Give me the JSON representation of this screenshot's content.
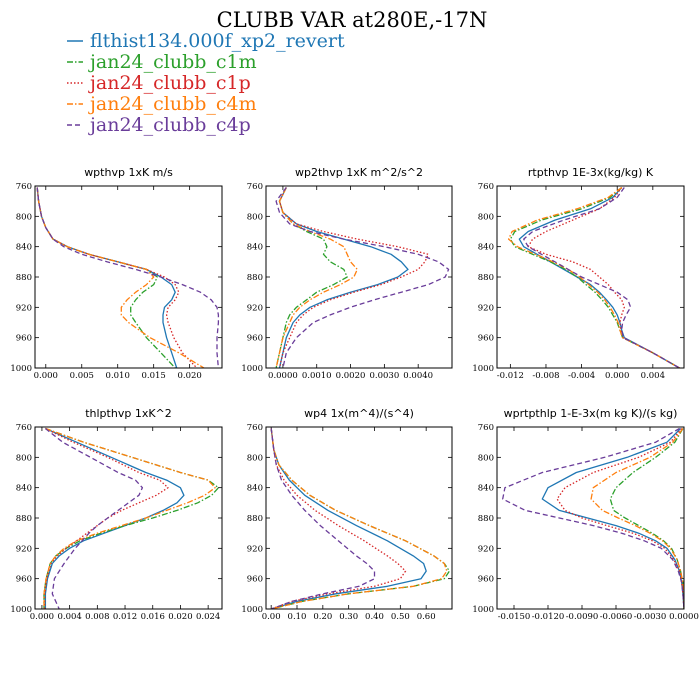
{
  "figure": {
    "title": "CLUBB VAR at280E,-17N"
  },
  "legend": [
    {
      "name": "flthist134.000f_xp2_revert",
      "color": "#1f77b4",
      "dash": "solid"
    },
    {
      "name": "jan24_clubb_c1m",
      "color": "#2ca02c",
      "dash": "dashdot"
    },
    {
      "name": "jan24_clubb_c1p",
      "color": "#d62728",
      "dash": "dot"
    },
    {
      "name": "jan24_clubb_c4m",
      "color": "#ff7f0e",
      "dash": "dashdot"
    },
    {
      "name": "jan24_clubb_c4p",
      "color": "#6a3d9a",
      "dash": "dash"
    }
  ],
  "chart_data": [
    {
      "type": "line",
      "title": "wpthvp  1xK m/s",
      "xlim": [
        -0.0015,
        0.0245
      ],
      "ylim": [
        760,
        1000
      ],
      "y_inverted": true,
      "xticks": [
        0.0,
        0.005,
        0.01,
        0.015,
        0.02
      ],
      "xtick_labels": [
        "0.000",
        "0.005",
        "0.010",
        "0.015",
        "0.020"
      ],
      "yticks": [
        760,
        800,
        840,
        880,
        920,
        960,
        1000
      ],
      "ytick_labels": [
        "760",
        "800",
        "840",
        "880",
        "920",
        "960",
        "1000"
      ],
      "y": [
        762,
        780,
        800,
        815,
        830,
        840,
        850,
        860,
        870,
        880,
        890,
        900,
        910,
        920,
        930,
        940,
        960,
        980,
        1000
      ],
      "series": [
        {
          "x": [
            -0.0012,
            -0.001,
            -0.0006,
            0.0,
            0.001,
            0.003,
            0.006,
            0.01,
            0.014,
            0.016,
            0.0175,
            0.018,
            0.0175,
            0.0165,
            0.0163,
            0.0163,
            0.0168,
            0.0175,
            0.0182
          ]
        },
        {
          "x": [
            -0.0012,
            -0.001,
            -0.0006,
            0.0,
            0.001,
            0.003,
            0.006,
            0.01,
            0.014,
            0.0155,
            0.015,
            0.0135,
            0.0125,
            0.0118,
            0.0118,
            0.0125,
            0.014,
            0.016,
            0.018
          ]
        },
        {
          "x": [
            -0.0012,
            -0.001,
            -0.0006,
            0.0,
            0.001,
            0.003,
            0.006,
            0.01,
            0.014,
            0.0165,
            0.018,
            0.0185,
            0.018,
            0.017,
            0.0168,
            0.017,
            0.0178,
            0.019,
            0.021
          ]
        },
        {
          "x": [
            -0.0012,
            -0.001,
            -0.0006,
            0.0,
            0.001,
            0.003,
            0.006,
            0.01,
            0.014,
            0.015,
            0.014,
            0.0125,
            0.0113,
            0.0105,
            0.0105,
            0.0115,
            0.0145,
            0.0185,
            0.022
          ]
        },
        {
          "x": [
            -0.0012,
            -0.001,
            -0.0006,
            0.0,
            0.001,
            0.0025,
            0.005,
            0.0085,
            0.0125,
            0.016,
            0.019,
            0.0215,
            0.023,
            0.0238,
            0.024,
            0.024,
            0.0238,
            0.0238,
            0.024
          ]
        }
      ]
    },
    {
      "type": "line",
      "title": "wp2thvp  1xK m^2/s^2",
      "xlim": [
        -0.0005,
        0.005
      ],
      "ylim": [
        760,
        1000
      ],
      "y_inverted": true,
      "xticks": [
        0.0,
        0.001,
        0.002,
        0.003,
        0.004
      ],
      "xtick_labels": [
        "0.0000",
        "0.0010",
        "0.0020",
        "0.0030",
        "0.0040"
      ],
      "yticks": [
        760,
        800,
        840,
        880,
        920,
        960,
        1000
      ],
      "ytick_labels": [
        "760",
        "800",
        "840",
        "880",
        "920",
        "960",
        "1000"
      ],
      "y": [
        762,
        780,
        795,
        810,
        820,
        830,
        840,
        850,
        860,
        870,
        880,
        890,
        900,
        910,
        920,
        930,
        940,
        960,
        980,
        1000
      ],
      "series": [
        {
          "x": [
            0.0001,
            -0.0001,
            0.0,
            0.0004,
            0.001,
            0.0018,
            0.0026,
            0.0032,
            0.0035,
            0.0037,
            0.0034,
            0.0028,
            0.002,
            0.0013,
            0.0008,
            0.0005,
            0.0003,
            0.0001,
            0.0,
            -0.0001
          ]
        },
        {
          "x": [
            0.0001,
            -0.0001,
            0.0,
            0.0003,
            0.0007,
            0.0012,
            0.0013,
            0.0012,
            0.0014,
            0.0018,
            0.0019,
            0.0015,
            0.001,
            0.0007,
            0.0004,
            0.0002,
            0.0001,
            0.0,
            -0.0001,
            -0.0002
          ]
        },
        {
          "x": [
            0.0001,
            -0.0001,
            0.0,
            0.0004,
            0.0012,
            0.0022,
            0.0034,
            0.0043,
            0.0042,
            0.004,
            0.0035,
            0.0029,
            0.0021,
            0.0014,
            0.0009,
            0.0006,
            0.0004,
            0.0002,
            0.0,
            -0.0001
          ]
        },
        {
          "x": [
            0.0001,
            -0.0001,
            0.0,
            0.0003,
            0.0008,
            0.0014,
            0.0018,
            0.0019,
            0.002,
            0.0022,
            0.0021,
            0.0017,
            0.0012,
            0.0008,
            0.0005,
            0.0003,
            0.0002,
            0.0,
            -0.0001,
            -0.0002
          ]
        },
        {
          "x": [
            0.0001,
            -0.0002,
            -0.0001,
            0.0002,
            0.0008,
            0.0018,
            0.003,
            0.004,
            0.0046,
            0.0049,
            0.0048,
            0.0043,
            0.0035,
            0.0027,
            0.002,
            0.0014,
            0.0009,
            0.0004,
            0.0001,
            0.0
          ]
        }
      ]
    },
    {
      "type": "line",
      "title": "rtpthvp  1E-3x(kg/kg) K",
      "xlim": [
        -0.0135,
        0.0075
      ],
      "ylim": [
        760,
        1000
      ],
      "y_inverted": true,
      "xticks": [
        -0.012,
        -0.008,
        -0.004,
        0.0,
        0.004
      ],
      "xtick_labels": [
        "-0.012",
        "-0.008",
        "-0.004",
        "0.000",
        "0.004"
      ],
      "yticks": [
        760,
        800,
        840,
        880,
        920,
        960,
        1000
      ],
      "ytick_labels": [
        "760",
        "800",
        "840",
        "880",
        "920",
        "960",
        "1000"
      ],
      "y": [
        762,
        775,
        790,
        805,
        820,
        830,
        840,
        850,
        860,
        870,
        880,
        890,
        900,
        910,
        920,
        930,
        940,
        950,
        960,
        980,
        1000
      ],
      "series": [
        {
          "x": [
            0.0005,
            -0.0005,
            -0.003,
            -0.007,
            -0.01,
            -0.011,
            -0.0105,
            -0.009,
            -0.0075,
            -0.006,
            -0.0045,
            -0.003,
            -0.002,
            -0.0012,
            -0.0005,
            0.0,
            0.0003,
            0.0005,
            0.0008,
            0.004,
            0.007
          ]
        },
        {
          "x": [
            0.0005,
            -0.0008,
            -0.004,
            -0.0085,
            -0.0115,
            -0.012,
            -0.0115,
            -0.0095,
            -0.0075,
            -0.0058,
            -0.0045,
            -0.0035,
            -0.0025,
            -0.0017,
            -0.001,
            -0.0005,
            0.0,
            0.0003,
            0.0006,
            0.004,
            0.007
          ]
        },
        {
          "x": [
            0.0005,
            -0.0003,
            -0.002,
            -0.005,
            -0.008,
            -0.0095,
            -0.01,
            -0.008,
            -0.005,
            -0.003,
            -0.002,
            -0.001,
            -0.0003,
            0.0005,
            0.0008,
            0.0005,
            0.0003,
            0.0004,
            0.0007,
            0.004,
            0.007
          ]
        },
        {
          "x": [
            0.0005,
            -0.001,
            -0.0045,
            -0.009,
            -0.0118,
            -0.0122,
            -0.0112,
            -0.0092,
            -0.0072,
            -0.0055,
            -0.0042,
            -0.0032,
            -0.0022,
            -0.0014,
            -0.0008,
            -0.0003,
            0.0001,
            0.0003,
            0.0006,
            0.004,
            0.007
          ]
        },
        {
          "x": [
            0.0008,
            0.0,
            -0.002,
            -0.006,
            -0.0095,
            -0.0105,
            -0.01,
            -0.0085,
            -0.007,
            -0.0055,
            -0.004,
            -0.002,
            0.0,
            0.0012,
            0.0015,
            0.001,
            0.0006,
            0.0005,
            0.0007,
            0.004,
            0.007
          ]
        }
      ]
    },
    {
      "type": "line",
      "title": "thlpthvp  1xK^2",
      "xlim": [
        -0.001,
        0.026
      ],
      "ylim": [
        760,
        1000
      ],
      "y_inverted": true,
      "xticks": [
        0.0,
        0.004,
        0.008,
        0.012,
        0.016,
        0.02,
        0.024
      ],
      "xtick_labels": [
        "0.000",
        "0.004",
        "0.008",
        "0.012",
        "0.016",
        "0.020",
        "0.024"
      ],
      "yticks": [
        760,
        800,
        840,
        880,
        920,
        960,
        1000
      ],
      "ytick_labels": [
        "760",
        "800",
        "840",
        "880",
        "920",
        "960",
        "1000"
      ],
      "y": [
        762,
        780,
        800,
        820,
        830,
        840,
        850,
        860,
        870,
        880,
        890,
        900,
        910,
        920,
        930,
        940,
        960,
        980,
        1000
      ],
      "series": [
        {
          "x": [
            0.0005,
            0.005,
            0.01,
            0.015,
            0.018,
            0.02,
            0.0205,
            0.0195,
            0.0175,
            0.015,
            0.012,
            0.009,
            0.006,
            0.004,
            0.0025,
            0.0015,
            0.0008,
            0.0005,
            0.0005
          ]
        },
        {
          "x": [
            0.0005,
            0.006,
            0.013,
            0.02,
            0.024,
            0.0255,
            0.0245,
            0.0225,
            0.0195,
            0.016,
            0.012,
            0.0085,
            0.0055,
            0.0035,
            0.002,
            0.0012,
            0.0006,
            0.0003,
            0.0003
          ]
        },
        {
          "x": [
            0.0005,
            0.0045,
            0.0095,
            0.014,
            0.017,
            0.0182,
            0.0165,
            0.014,
            0.0115,
            0.0095,
            0.008,
            0.0065,
            0.005,
            0.0035,
            0.0022,
            0.0013,
            0.0007,
            0.0004,
            0.0004
          ]
        },
        {
          "x": [
            0.0005,
            0.006,
            0.013,
            0.02,
            0.024,
            0.025,
            0.0235,
            0.021,
            0.018,
            0.015,
            0.0115,
            0.008,
            0.005,
            0.0032,
            0.002,
            0.0012,
            0.0006,
            0.0003,
            0.0003
          ]
        },
        {
          "x": [
            0.0005,
            0.003,
            0.007,
            0.011,
            0.0135,
            0.0145,
            0.014,
            0.0125,
            0.011,
            0.0095,
            0.008,
            0.0068,
            0.0058,
            0.0048,
            0.004,
            0.0032,
            0.0018,
            0.0015,
            0.0025
          ]
        }
      ]
    },
    {
      "type": "line",
      "title": "wp4  1x(m^4)/(s^4)",
      "xlim": [
        -0.02,
        0.7
      ],
      "ylim": [
        760,
        1000
      ],
      "y_inverted": true,
      "xticks": [
        0.0,
        0.1,
        0.2,
        0.3,
        0.4,
        0.5,
        0.6
      ],
      "xtick_labels": [
        "0.00",
        "0.10",
        "0.20",
        "0.30",
        "0.40",
        "0.50",
        "0.60"
      ],
      "yticks": [
        760,
        800,
        840,
        880,
        920,
        960,
        1000
      ],
      "ytick_labels": [
        "760",
        "800",
        "840",
        "880",
        "920",
        "960",
        "1000"
      ],
      "y": [
        762,
        790,
        810,
        830,
        850,
        870,
        890,
        910,
        930,
        940,
        950,
        960,
        970,
        980,
        990,
        1000
      ],
      "series": [
        {
          "x": [
            0.0,
            0.01,
            0.03,
            0.07,
            0.13,
            0.22,
            0.33,
            0.45,
            0.55,
            0.59,
            0.6,
            0.58,
            0.45,
            0.25,
            0.1,
            0.0
          ]
        },
        {
          "x": [
            0.0,
            0.01,
            0.03,
            0.08,
            0.15,
            0.25,
            0.38,
            0.52,
            0.63,
            0.67,
            0.69,
            0.67,
            0.55,
            0.3,
            0.12,
            0.0
          ]
        },
        {
          "x": [
            0.0,
            0.01,
            0.02,
            0.05,
            0.1,
            0.17,
            0.26,
            0.36,
            0.45,
            0.49,
            0.52,
            0.5,
            0.4,
            0.22,
            0.08,
            0.0
          ]
        },
        {
          "x": [
            0.0,
            0.01,
            0.03,
            0.08,
            0.15,
            0.25,
            0.38,
            0.52,
            0.63,
            0.67,
            0.68,
            0.66,
            0.55,
            0.3,
            0.12,
            0.0
          ]
        },
        {
          "x": [
            0.0,
            0.01,
            0.02,
            0.04,
            0.08,
            0.13,
            0.19,
            0.26,
            0.33,
            0.37,
            0.4,
            0.4,
            0.34,
            0.2,
            0.08,
            0.0
          ]
        }
      ]
    },
    {
      "type": "line",
      "title": "wprtpthlp  1-E-3x(m kg K)/(s kg)",
      "xlim": [
        -0.0165,
        0.0
      ],
      "ylim": [
        760,
        1000
      ],
      "y_inverted": true,
      "xticks": [
        -0.015,
        -0.012,
        -0.009,
        -0.006,
        -0.003,
        0.0
      ],
      "xtick_labels": [
        "-0.0150",
        "-0.0120",
        "-0.0090",
        "-0.0060",
        "-0.0030",
        "0.0000"
      ],
      "yticks": [
        760,
        800,
        840,
        880,
        920,
        960,
        1000
      ],
      "ytick_labels": [
        "760",
        "800",
        "840",
        "880",
        "920",
        "960",
        "1000"
      ],
      "y": [
        762,
        780,
        800,
        820,
        840,
        855,
        870,
        880,
        890,
        900,
        910,
        920,
        935,
        950,
        965,
        980,
        1000
      ],
      "series": [
        {
          "x": [
            -0.0003,
            -0.0015,
            -0.005,
            -0.0095,
            -0.012,
            -0.0125,
            -0.011,
            -0.0085,
            -0.006,
            -0.004,
            -0.0025,
            -0.0015,
            -0.0008,
            -0.0004,
            -0.0002,
            -0.0001,
            0.0
          ]
        },
        {
          "x": [
            -0.0001,
            -0.0008,
            -0.0025,
            -0.0045,
            -0.006,
            -0.0065,
            -0.0062,
            -0.0052,
            -0.004,
            -0.0028,
            -0.0018,
            -0.0011,
            -0.0006,
            -0.0003,
            -0.0001,
            0.0,
            0.0
          ]
        },
        {
          "x": [
            -0.0002,
            -0.0012,
            -0.004,
            -0.008,
            -0.0105,
            -0.0112,
            -0.0105,
            -0.009,
            -0.0068,
            -0.0045,
            -0.0028,
            -0.0017,
            -0.0009,
            -0.0004,
            -0.0002,
            -0.0001,
            0.0
          ]
        },
        {
          "x": [
            -0.0001,
            -0.001,
            -0.003,
            -0.006,
            -0.008,
            -0.0082,
            -0.0072,
            -0.0058,
            -0.0043,
            -0.003,
            -0.0019,
            -0.0012,
            -0.0006,
            -0.0003,
            -0.0001,
            0.0,
            0.0
          ]
        },
        {
          "x": [
            -0.0004,
            -0.0025,
            -0.007,
            -0.0125,
            -0.0158,
            -0.016,
            -0.014,
            -0.011,
            -0.008,
            -0.0055,
            -0.0035,
            -0.002,
            -0.001,
            -0.0005,
            -0.0002,
            -0.0001,
            0.0
          ]
        }
      ]
    }
  ]
}
